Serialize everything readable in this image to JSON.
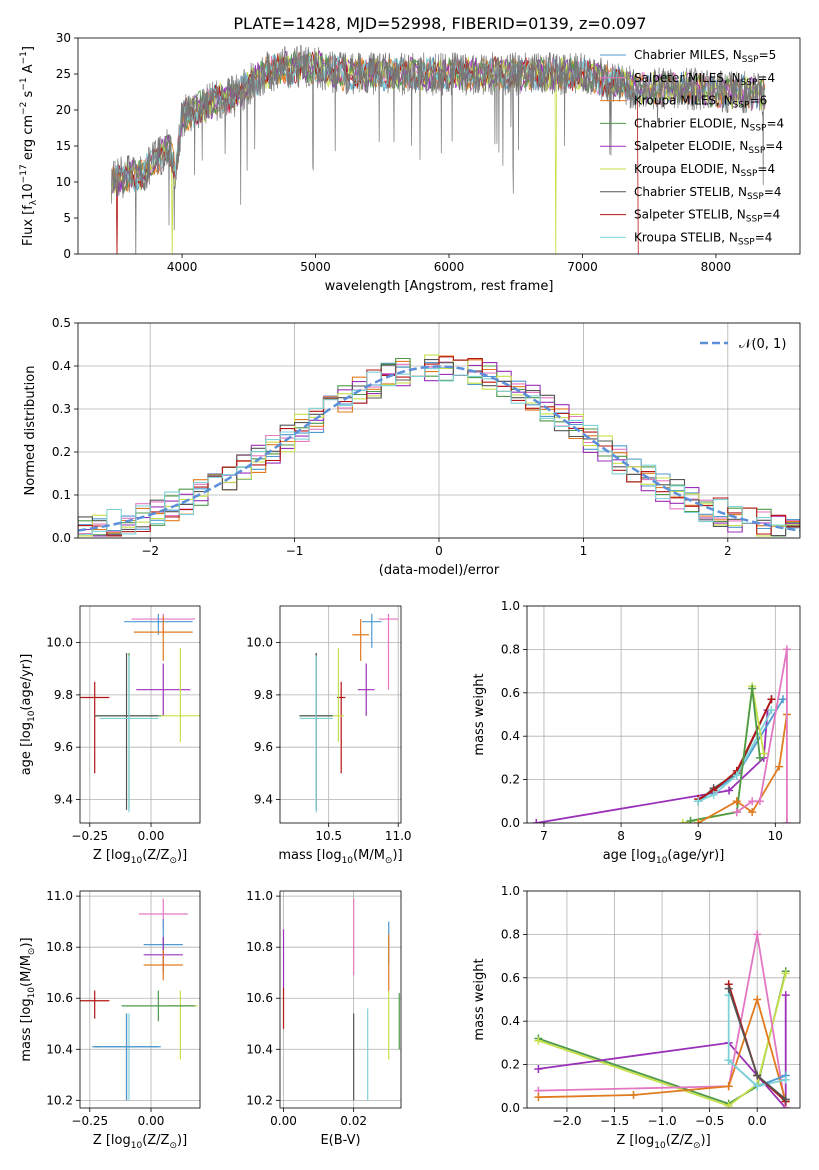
{
  "title": "PLATE=1428, MJD=52998, FIBERID=0139, z=0.097",
  "colors": {
    "chabrier_miles": "#4f9ad1",
    "salpeter_miles": "#e377c2",
    "kroupa_miles": "#e07b20",
    "chabrier_elodie": "#4e9a4a",
    "salpeter_elodie": "#9b30b8",
    "kroupa_elodie": "#c7e04a",
    "chabrier_stelib": "#555555",
    "salpeter_stelib": "#b51515",
    "kroupa_stelib": "#7fd3d8",
    "gauss": "#5b8fd9",
    "grid": "#b0b0b0"
  },
  "chart_data": [
    {
      "id": "spectrum",
      "type": "line",
      "xlabel": "wavelength [Angstrom, rest frame]",
      "ylabel": "Flux [f$_\\lambda$10$^{-17}$ erg cm$^{-2}$ s$^{-1}$ A$^{-1}$]",
      "xlim": [
        3220,
        8630
      ],
      "ylim": [
        0,
        30
      ],
      "xticks": [
        4000,
        5000,
        6000,
        7000,
        8000
      ],
      "yticks": [
        0,
        5,
        10,
        15,
        20,
        25,
        30
      ],
      "grid": false,
      "legend_position": "top-right",
      "legend": [
        {
          "label": "Chabrier MILES, N",
          "sub": "SSP",
          "suffix": "=5",
          "color": "chabrier_miles"
        },
        {
          "label": "Salpeter MILES, N",
          "sub": "SSP",
          "suffix": "=4",
          "color": "salpeter_miles"
        },
        {
          "label": "Kroupa MILES, N",
          "sub": "SSP",
          "suffix": "=6",
          "color": "kroupa_miles"
        },
        {
          "label": "Chabrier ELODIE, N",
          "sub": "SSP",
          "suffix": "=4",
          "color": "chabrier_elodie"
        },
        {
          "label": "Salpeter ELODIE, N",
          "sub": "SSP",
          "suffix": "=4",
          "color": "salpeter_elodie"
        },
        {
          "label": "Kroupa ELODIE, N",
          "sub": "SSP",
          "suffix": "=4",
          "color": "kroupa_elodie"
        },
        {
          "label": "Chabrier STELIB, N",
          "sub": "SSP",
          "suffix": "=4",
          "color": "chabrier_stelib"
        },
        {
          "label": "Salpeter STELIB, N",
          "sub": "SSP",
          "suffix": "=4",
          "color": "salpeter_stelib"
        },
        {
          "label": "Kroupa STELIB, N",
          "sub": "SSP",
          "suffix": "=4",
          "color": "kroupa_stelib"
        }
      ],
      "continuum": [
        [
          3470,
          10
        ],
        [
          3600,
          11
        ],
        [
          3700,
          11
        ],
        [
          3800,
          13
        ],
        [
          3900,
          15
        ],
        [
          3950,
          11
        ],
        [
          4000,
          19
        ],
        [
          4200,
          21
        ],
        [
          4400,
          22
        ],
        [
          4600,
          25
        ],
        [
          4800,
          26
        ],
        [
          5000,
          26
        ],
        [
          5200,
          25
        ],
        [
          5500,
          25
        ],
        [
          5800,
          25
        ],
        [
          6000,
          25
        ],
        [
          6300,
          25
        ],
        [
          6500,
          25
        ],
        [
          6800,
          25
        ],
        [
          7000,
          25
        ],
        [
          7200,
          24
        ],
        [
          7400,
          23
        ],
        [
          7600,
          23
        ],
        [
          7800,
          23
        ],
        [
          8000,
          22.5
        ],
        [
          8200,
          22.5
        ],
        [
          8370,
          22
        ]
      ],
      "model_range": [
        3470,
        8370
      ],
      "stelib_range": [
        3500,
        7420
      ],
      "model_drops": [
        {
          "series": "salpeter_stelib",
          "x": 3510
        },
        {
          "series": "kroupa_elodie",
          "x": 3925
        },
        {
          "series": "kroupa_elodie",
          "x": 6800
        },
        {
          "series": "salpeter_stelib",
          "x": 7420
        }
      ]
    },
    {
      "id": "residuals",
      "type": "histogram",
      "xlabel": "(data-model)/error",
      "ylabel": "Normed distribution",
      "xlim": [
        -2.5,
        2.5
      ],
      "ylim": [
        0,
        0.5
      ],
      "xticks": [
        -2,
        -1,
        0,
        1,
        2
      ],
      "yticks": [
        0.0,
        0.1,
        0.2,
        0.3,
        0.4,
        0.5
      ],
      "grid": true,
      "legend_position": "top-right",
      "legend_label": "N(0,1)",
      "bin_width": 0.1,
      "series": [
        "chabrier_miles",
        "salpeter_miles",
        "kroupa_miles",
        "chabrier_elodie",
        "salpeter_elodie",
        "kroupa_elodie",
        "chabrier_stelib",
        "salpeter_stelib",
        "kroupa_stelib"
      ],
      "jitter_amplitude": 0.035
    },
    {
      "id": "age_vs_Z",
      "type": "errorbar",
      "xlabel": "Z [log$_{10}$(Z/Z$_\\odot$)]",
      "ylabel": "age  [log$_{10}$(age/yr)]",
      "xlim": [
        -0.29,
        0.2
      ],
      "ylim": [
        9.31,
        10.14
      ],
      "xticks": [
        -0.25,
        0.0
      ],
      "yticks": [
        9.4,
        9.6,
        9.8,
        10.0
      ],
      "xtick_labels": [
        "−0.25",
        "0.00"
      ],
      "grid": true,
      "points": [
        {
          "series": "salpeter_miles",
          "x": 0.05,
          "xerr": 0.13,
          "y": 10.09,
          "yerr": [
            0.06,
            0.02
          ]
        },
        {
          "series": "chabrier_miles",
          "x": 0.03,
          "xerr": 0.14,
          "y": 10.08,
          "yerr": [
            0.05,
            0.03
          ]
        },
        {
          "series": "kroupa_miles",
          "x": 0.05,
          "xerr": 0.12,
          "y": 10.04,
          "yerr": [
            0.11,
            0.06
          ]
        },
        {
          "series": "salpeter_elodie",
          "x": 0.05,
          "xerr": 0.11,
          "y": 9.82,
          "yerr": [
            0.1,
            0.1
          ]
        },
        {
          "series": "salpeter_stelib",
          "x": -0.23,
          "xerr": 0.06,
          "y": 9.79,
          "yerr": [
            0.29,
            0.06
          ]
        },
        {
          "series": "chabrier_elodie",
          "x": -0.09,
          "xerr": 0.14,
          "y": 9.72,
          "yerr": [
            0.36,
            0.24
          ]
        },
        {
          "series": "chabrier_stelib",
          "x": -0.1,
          "xerr": 0.13,
          "y": 9.72,
          "yerr": [
            0.36,
            0.24
          ]
        },
        {
          "series": "kroupa_stelib",
          "x": -0.09,
          "xerr": 0.12,
          "y": 9.71,
          "yerr": [
            0.36,
            0.24
          ]
        },
        {
          "series": "kroupa_elodie",
          "x": 0.12,
          "xerr": 0.08,
          "y": 9.72,
          "yerr": [
            0.1,
            0.26
          ]
        }
      ]
    },
    {
      "id": "age_vs_mass",
      "type": "errorbar",
      "xlabel": "mass [log$_{10}$(M/M$_\\odot$)]",
      "ylabel": "",
      "xlim": [
        10.15,
        11.02
      ],
      "ylim": [
        9.31,
        10.14
      ],
      "xticks": [
        10.5,
        11.0
      ],
      "yticks": [
        9.4,
        9.6,
        9.8,
        10.0
      ],
      "xtick_labels": [
        "10.5",
        "11.0"
      ],
      "grid": true,
      "points": [
        {
          "series": "salpeter_miles",
          "x": 10.93,
          "xerr": 0.07,
          "y": 10.09,
          "yerr": [
            0.27,
            0.02
          ]
        },
        {
          "series": "chabrier_miles",
          "x": 10.81,
          "xerr": 0.07,
          "y": 10.08,
          "yerr": [
            0.1,
            0.03
          ]
        },
        {
          "series": "kroupa_miles",
          "x": 10.73,
          "xerr": 0.06,
          "y": 10.03,
          "yerr": [
            0.1,
            0.06
          ]
        },
        {
          "series": "salpeter_elodie",
          "x": 10.77,
          "xerr": 0.06,
          "y": 9.82,
          "yerr": [
            0.1,
            0.1
          ]
        },
        {
          "series": "salpeter_stelib",
          "x": 10.59,
          "xerr": 0.03,
          "y": 9.79,
          "yerr": [
            0.29,
            0.06
          ]
        },
        {
          "series": "chabrier_elodie",
          "x": 10.41,
          "xerr": 0.12,
          "y": 9.72,
          "yerr": [
            0.36,
            0.24
          ]
        },
        {
          "series": "chabrier_stelib",
          "x": 10.41,
          "xerr": 0.12,
          "y": 9.72,
          "yerr": [
            0.36,
            0.24
          ]
        },
        {
          "series": "kroupa_stelib",
          "x": 10.41,
          "xerr": 0.12,
          "y": 9.71,
          "yerr": [
            0.36,
            0.24
          ]
        },
        {
          "series": "kroupa_elodie",
          "x": 10.57,
          "xerr": 0.04,
          "y": 9.72,
          "yerr": [
            0.1,
            0.26
          ]
        }
      ]
    },
    {
      "id": "weight_vs_age",
      "type": "line",
      "xlabel": "age  [log$_{10}$(age/yr)]",
      "ylabel": "mass weight",
      "xlim": [
        6.78,
        10.32
      ],
      "ylim": [
        0,
        1.0
      ],
      "xticks": [
        7,
        8,
        9,
        10
      ],
      "yticks": [
        0.0,
        0.2,
        0.4,
        0.6,
        0.8,
        1.0
      ],
      "grid": true,
      "series": [
        {
          "series": "salpeter_elodie",
          "x": [
            6.9,
            9.4,
            9.85,
            9.9
          ],
          "y": [
            0.0,
            0.15,
            0.3,
            0.52
          ]
        },
        {
          "series": "chabrier_miles",
          "x": [
            9.0,
            9.2,
            9.5,
            10.1
          ],
          "y": [
            0.1,
            0.15,
            0.22,
            0.57
          ]
        },
        {
          "series": "chabrier_stelib",
          "x": [
            9.0,
            9.2,
            9.5,
            9.95
          ],
          "y": [
            0.1,
            0.16,
            0.23,
            0.57
          ]
        },
        {
          "series": "salpeter_stelib",
          "x": [
            9.0,
            9.2,
            9.5,
            9.95
          ],
          "y": [
            0.11,
            0.15,
            0.24,
            0.57
          ]
        },
        {
          "series": "kroupa_stelib",
          "x": [
            9.0,
            9.2,
            9.5,
            9.95
          ],
          "y": [
            0.1,
            0.13,
            0.22,
            0.52
          ]
        },
        {
          "series": "kroupa_elodie",
          "x": [
            8.8,
            9.5,
            9.7,
            9.85
          ],
          "y": [
            0.0,
            0.05,
            0.63,
            0.32
          ]
        },
        {
          "series": "chabrier_elodie",
          "x": [
            8.9,
            9.5,
            9.7,
            9.8
          ],
          "y": [
            0.01,
            0.05,
            0.62,
            0.3
          ]
        },
        {
          "series": "kroupa_miles",
          "x": [
            9.0,
            9.5,
            9.7,
            10.05,
            10.15
          ],
          "y": [
            0.0,
            0.1,
            0.05,
            0.26,
            0.5
          ]
        },
        {
          "series": "salpeter_miles",
          "x": [
            9.5,
            9.7,
            9.8,
            10.15,
            10.15
          ],
          "y": [
            0.05,
            0.1,
            0.1,
            0.8,
            0.0
          ]
        }
      ]
    },
    {
      "id": "mass_vs_Z",
      "type": "errorbar",
      "xlabel": "Z [log$_{10}$(Z/Z$_\\odot$)]",
      "ylabel": "mass [log$_{10}$(M/M$_\\odot$)]",
      "xlim": [
        -0.29,
        0.2
      ],
      "ylim": [
        10.17,
        11.02
      ],
      "xticks": [
        -0.25,
        0.0
      ],
      "yticks": [
        10.2,
        10.4,
        10.6,
        10.8,
        11.0
      ],
      "xtick_labels": [
        "−0.25",
        "0.00"
      ],
      "grid": true,
      "points": [
        {
          "series": "salpeter_miles",
          "x": 0.05,
          "xerr": 0.1,
          "y": 10.93,
          "yerr": [
            0.06,
            0.06
          ]
        },
        {
          "series": "chabrier_miles",
          "x": 0.05,
          "xerr": 0.08,
          "y": 10.81,
          "yerr": [
            0.08,
            0.1
          ]
        },
        {
          "series": "salpeter_elodie",
          "x": 0.05,
          "xerr": 0.08,
          "y": 10.77,
          "yerr": [
            0.07,
            0.07
          ]
        },
        {
          "series": "kroupa_miles",
          "x": 0.05,
          "xerr": 0.08,
          "y": 10.73,
          "yerr": [
            0.06,
            0.06
          ]
        },
        {
          "series": "salpeter_stelib",
          "x": -0.23,
          "xerr": 0.06,
          "y": 10.59,
          "yerr": [
            0.07,
            0.04
          ]
        },
        {
          "series": "kroupa_elodie",
          "x": 0.12,
          "xerr": 0.07,
          "y": 10.57,
          "yerr": [
            0.21,
            0.06
          ]
        },
        {
          "series": "chabrier_elodie",
          "x": 0.03,
          "xerr": 0.15,
          "y": 10.57,
          "yerr": [
            0.06,
            0.06
          ]
        },
        {
          "series": "chabrier_stelib",
          "x": -0.1,
          "xerr": 0.13,
          "y": 10.41,
          "yerr": [
            0.21,
            0.13
          ]
        },
        {
          "series": "kroupa_stelib",
          "x": -0.09,
          "xerr": 0.12,
          "y": 10.41,
          "yerr": [
            0.21,
            0.13
          ]
        },
        {
          "series": "chabrier_miles",
          "x": -0.1,
          "xerr": 0.14,
          "y": 10.41,
          "yerr": [
            0.21,
            0.13
          ]
        }
      ]
    },
    {
      "id": "mass_vs_ebv",
      "type": "errorbar",
      "xlabel": "E(B-V)",
      "ylabel": "",
      "xlim": [
        -0.001,
        0.0335
      ],
      "ylim": [
        10.17,
        11.02
      ],
      "xticks": [
        0.0,
        0.02
      ],
      "yticks": [
        10.2,
        10.4,
        10.6,
        10.8,
        11.0
      ],
      "xtick_labels": [
        "0.00",
        "0.02"
      ],
      "grid": true,
      "points": [
        {
          "series": "salpeter_elodie",
          "x": 0.0,
          "xerr": 0,
          "y": 10.77,
          "yerr": [
            0.14,
            0.1
          ]
        },
        {
          "series": "salpeter_stelib",
          "x": 0.0,
          "xerr": 0,
          "y": 10.56,
          "yerr": [
            0.08,
            0.08
          ]
        },
        {
          "series": "salpeter_miles",
          "x": 0.02,
          "xerr": 0,
          "y": 10.84,
          "yerr": [
            0.15,
            0.15
          ]
        },
        {
          "series": "chabrier_stelib",
          "x": 0.02,
          "xerr": 0,
          "y": 10.41,
          "yerr": [
            0.21,
            0.13
          ]
        },
        {
          "series": "kroupa_stelib",
          "x": 0.024,
          "xerr": 0,
          "y": 10.41,
          "yerr": [
            0.21,
            0.15
          ]
        },
        {
          "series": "chabrier_miles",
          "x": 0.03,
          "xerr": 0,
          "y": 10.81,
          "yerr": [
            0.08,
            0.09
          ]
        },
        {
          "series": "kroupa_miles",
          "x": 0.03,
          "xerr": 0,
          "y": 10.73,
          "yerr": [
            0.1,
            0.12
          ]
        },
        {
          "series": "kroupa_elodie",
          "x": 0.03,
          "xerr": 0,
          "y": 10.57,
          "yerr": [
            0.21,
            0.06
          ]
        },
        {
          "series": "chabrier_elodie",
          "x": 0.033,
          "xerr": 0,
          "y": 10.5,
          "yerr": [
            0.1,
            0.12
          ]
        }
      ]
    },
    {
      "id": "weight_vs_Z",
      "type": "line",
      "xlabel": "Z [log$_{10}$(Z/Z$_\\odot$)]",
      "ylabel": "mass weight",
      "xlim": [
        -2.42,
        0.45
      ],
      "ylim": [
        0,
        1.0
      ],
      "xticks": [
        -2.0,
        -1.5,
        -1.0,
        -0.5,
        0.0
      ],
      "yticks": [
        0.0,
        0.2,
        0.4,
        0.6,
        0.8,
        1.0
      ],
      "xtick_labels": [
        "−2.0",
        "−1.5",
        "−1.0",
        "−0.5",
        "0.0"
      ],
      "grid": true,
      "series": [
        {
          "series": "chabrier_elodie",
          "x": [
            -2.3,
            -0.3,
            0.0,
            0.3
          ],
          "y": [
            0.32,
            0.02,
            0.1,
            0.63
          ]
        },
        {
          "series": "kroupa_elodie",
          "x": [
            -2.3,
            -0.3,
            0.0,
            0.3
          ],
          "y": [
            0.31,
            0.01,
            0.11,
            0.62
          ]
        },
        {
          "series": "salpeter_elodie",
          "x": [
            -2.3,
            -0.3,
            0.3,
            0.3
          ],
          "y": [
            0.18,
            0.3,
            0.0,
            0.52
          ]
        },
        {
          "series": "salpeter_miles",
          "x": [
            -2.3,
            -0.3,
            0.0,
            0.3
          ],
          "y": [
            0.08,
            0.1,
            0.8,
            0.0
          ]
        },
        {
          "series": "kroupa_miles",
          "x": [
            -2.3,
            -1.3,
            -0.3,
            0.0,
            0.3
          ],
          "y": [
            0.05,
            0.06,
            0.1,
            0.5,
            0.03
          ]
        },
        {
          "series": "chabrier_miles",
          "x": [
            -0.3,
            0.0,
            0.3
          ],
          "y": [
            0.22,
            0.1,
            0.15
          ]
        },
        {
          "series": "kroupa_stelib",
          "x": [
            -0.3,
            -0.3,
            0.0,
            0.3
          ],
          "y": [
            0.52,
            0.22,
            0.1,
            0.13
          ]
        },
        {
          "series": "salpeter_stelib",
          "x": [
            -0.3,
            0.0,
            0.3
          ],
          "y": [
            0.57,
            0.15,
            0.03
          ]
        },
        {
          "series": "chabrier_stelib",
          "x": [
            -0.3,
            0.0,
            0.3
          ],
          "y": [
            0.55,
            0.15,
            0.04
          ]
        }
      ]
    }
  ]
}
